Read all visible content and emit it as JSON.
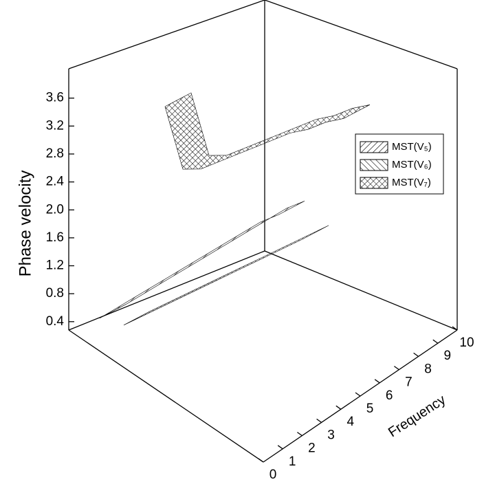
{
  "chart_data": {
    "type": "ribbon3d",
    "z_label": "Phase velocity",
    "x_label": "Frequency",
    "xlim": [
      0,
      10
    ],
    "xticks": [
      0,
      1,
      2,
      3,
      4,
      5,
      6,
      7,
      8,
      9,
      10
    ],
    "zlim": [
      0.28,
      4.02
    ],
    "zticks": [
      0.4,
      0.8,
      1.2,
      1.6,
      {
        "value": 2,
        "label": "2.0"
      },
      2.4,
      2.8,
      3.2,
      3.6
    ],
    "x": [
      0,
      1,
      2,
      3,
      4,
      5,
      6,
      7,
      8,
      9,
      10
    ],
    "series": [
      {
        "name": "MST(V₅)",
        "pattern": "diagonal",
        "color": "#000000",
        "values": [
          0.45,
          0.6,
          0.75,
          0.9,
          1.05,
          1.2,
          1.35,
          1.5,
          1.65,
          1.8,
          1.9
        ]
      },
      {
        "name": "MST(V₆)",
        "pattern": "backdiagonal",
        "color": "#000000",
        "values": [
          0.4,
          0.52,
          0.64,
          0.76,
          0.88,
          1.0,
          1.12,
          1.24,
          1.36,
          1.48,
          1.6
        ]
      },
      {
        "name": "MST(V₇)",
        "pattern": "crosshatch",
        "color": "#000000",
        "values": [
          3.4,
          2.5,
          2.5,
          2.6,
          2.7,
          2.8,
          2.9,
          3.0,
          3.05,
          3.15,
          3.2
        ]
      }
    ]
  }
}
